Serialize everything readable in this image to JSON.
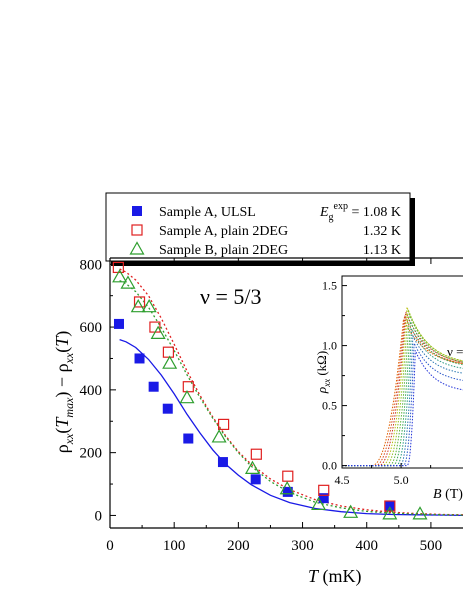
{
  "chart_data": [
    {
      "type": "scatter",
      "annotation": "ν = 5/3",
      "xlabel": "T (mK)",
      "ylabel": "ρxx(Tmax) − ρxx(T)",
      "xlim": [
        0,
        550
      ],
      "ylim": [
        -40,
        820
      ],
      "xticks": [
        0,
        100,
        200,
        300,
        400,
        500
      ],
      "yticks": [
        0,
        200,
        400,
        600,
        800
      ],
      "legend_placement": "top",
      "series": [
        {
          "name": "Sample A, ULSL",
          "gap_label": "E_g^exp = 1.08 K",
          "marker": "filled-square",
          "color": "#1a1ae6",
          "x": [
            14,
            46,
            68,
            90,
            122,
            176,
            227,
            277,
            333,
            436
          ],
          "y": [
            610,
            500,
            410,
            340,
            245,
            170,
            115,
            75,
            55,
            30
          ],
          "fit": {
            "style": "solid",
            "x": [
              15,
              25,
              40,
              60,
              80,
              100,
              120,
              140,
              160,
              180,
              200,
              220,
              250,
              280,
              320,
              360,
              400,
              440,
              480,
              520,
              550
            ],
            "y": [
              560,
              553,
              535,
              497,
              447,
              387,
              322,
              263,
              209,
              164,
              128,
              98,
              64,
              41,
              22,
              12,
              6,
              3,
              2,
              1,
              0
            ]
          }
        },
        {
          "name": "Sample A, plain 2DEG",
          "gap_label": "1.32 K",
          "marker": "open-square",
          "color": "#e02020",
          "x": [
            13,
            46,
            70,
            91,
            122,
            177,
            228,
            277,
            333,
            436
          ],
          "y": [
            790,
            680,
            600,
            520,
            410,
            290,
            195,
            125,
            80,
            30
          ],
          "fit": {
            "style": "dotted",
            "x": [
              15,
              25,
              40,
              60,
              80,
              100,
              120,
              140,
              160,
              180,
              200,
              220,
              250,
              280,
              320,
              360,
              400,
              440,
              480,
              520,
              550
            ],
            "y": [
              785,
              775,
              750,
              700,
              628,
              545,
              460,
              383,
              314,
              254,
              203,
              163,
              116,
              82,
              50,
              30,
              18,
              10,
              6,
              3,
              2
            ]
          }
        },
        {
          "name": "Sample B, plain 2DEG",
          "gap_label": "1.13 K",
          "marker": "open-triangle",
          "color": "#2e9e2e",
          "x": [
            15,
            28,
            44,
            61,
            75,
            93,
            120,
            170,
            222,
            276,
            325,
            375,
            436,
            483
          ],
          "y": [
            760,
            740,
            665,
            665,
            580,
            485,
            375,
            250,
            150,
            85,
            35,
            10,
            5,
            5
          ],
          "fit": {
            "style": "dotted",
            "x": [
              15,
              25,
              40,
              60,
              80,
              100,
              120,
              140,
              160,
              180,
              200,
              220,
              250,
              280,
              320,
              360,
              400,
              440,
              480,
              520,
              550
            ],
            "y": [
              748,
              738,
              713,
              663,
              598,
              525,
              448,
              376,
              310,
              251,
              200,
              157,
              108,
              73,
              42,
              24,
              13,
              7,
              4,
              2,
              1
            ]
          }
        }
      ]
    },
    {
      "type": "line",
      "role": "inset",
      "annotation": "ν =",
      "xlabel": "B (T)",
      "ylabel": "ρxx (kΩ)",
      "xlim": [
        4.5,
        5.6
      ],
      "ylim": [
        -0.02,
        1.58
      ],
      "xticks": [
        4.5,
        5.0
      ],
      "xtick_labels": [
        "4.5",
        "5.0"
      ],
      "yticks": [
        0.0,
        0.5,
        1.0,
        1.5
      ],
      "ytick_labels": [
        "0.0",
        "0.5",
        "1.0",
        "1.5"
      ],
      "curve_colors": [
        "#e06000",
        "#d84818",
        "#c83020",
        "#b8c010",
        "#8cbd22",
        "#5ab23a",
        "#36a84e",
        "#2a9a80",
        "#2a78b0",
        "#2a58c8",
        "#2233d8"
      ],
      "peak_x": [
        5.02,
        5.03,
        5.04,
        5.05,
        5.06,
        5.07,
        5.08,
        5.09,
        5.1,
        5.11,
        5.12
      ],
      "peak_y": [
        1.22,
        1.25,
        1.28,
        1.32,
        1.3,
        1.26,
        1.2,
        1.14,
        1.08,
        1.02,
        0.96
      ],
      "rise_start_x": [
        4.75,
        4.78,
        4.81,
        4.84,
        4.87,
        4.9,
        4.93,
        4.96,
        4.99,
        5.02,
        5.05
      ],
      "tail_y_at_edge": [
        0.84,
        0.84,
        0.85,
        0.86,
        0.86,
        0.85,
        0.83,
        0.8,
        0.76,
        0.7,
        0.62
      ]
    }
  ]
}
